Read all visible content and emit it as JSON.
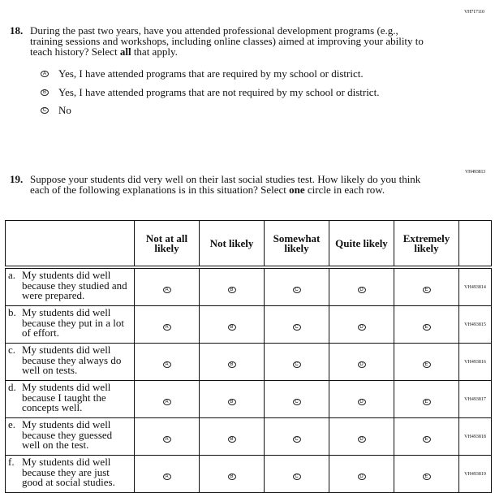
{
  "q18": {
    "code": "VH717110",
    "number": "18.",
    "text_before": "During the past two years, have you attended professional development programs (e.g., training sessions and workshops, including online classes) aimed at improving your ability to teach history? Select ",
    "text_bold": "all",
    "text_after": " that apply.",
    "options": [
      {
        "letter": "A",
        "label": "Yes, I have attended programs that are required by my school or district."
      },
      {
        "letter": "B",
        "label": "Yes, I have attended programs that are not required by my school or district."
      },
      {
        "letter": "C",
        "label": "No"
      }
    ]
  },
  "q19": {
    "code": "VH493813",
    "number": "19.",
    "text_before": "Suppose your students did very well on their last social studies test. How likely do you think each of the following explanations is in this situation? Select ",
    "text_bold": "one",
    "text_after": " circle in each row.",
    "columns": [
      "Not at all likely",
      "Not likely",
      "Somewhat likely",
      "Quite likely",
      "Extremely likely"
    ],
    "letters": [
      "A",
      "B",
      "C",
      "D",
      "E"
    ],
    "rows": [
      {
        "letter": "a.",
        "text": "My students did well because they studied and were prepared.",
        "code": "VH493814"
      },
      {
        "letter": "b.",
        "text": "My students did well because they put in a lot of effort.",
        "code": "VH493815"
      },
      {
        "letter": "c.",
        "text": "My students did well because they always do well on tests.",
        "code": "VH493816"
      },
      {
        "letter": "d.",
        "text": "My students did well because I taught the concepts well.",
        "code": "VH493817"
      },
      {
        "letter": "e.",
        "text": "My students did well because they guessed well on the test.",
        "code": "VH493818"
      },
      {
        "letter": "f.",
        "text": "My students did well because they are just good at social studies.",
        "code": "VH493819"
      }
    ]
  }
}
